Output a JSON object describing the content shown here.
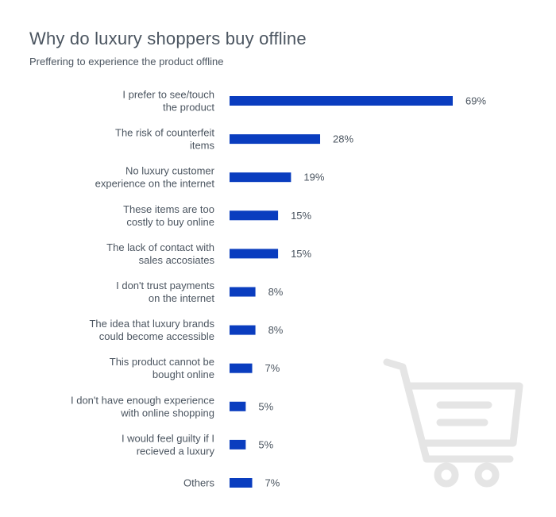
{
  "header": {
    "title": "Why do luxury shoppers buy offline",
    "subtitle": "Preffering to experience the product offline"
  },
  "colors": {
    "bar": "#0a3dbf",
    "text": "#4b5560",
    "icon": "#e5e5e5"
  },
  "icons": [
    "shopping-cart-icon"
  ],
  "chart_data": {
    "type": "bar",
    "orientation": "horizontal",
    "categories": [
      [
        "I prefer to see/touch",
        "the product"
      ],
      [
        "The risk of counterfeit",
        "items"
      ],
      [
        "No luxury customer",
        "experience on the internet"
      ],
      [
        "These items are too",
        "costly to buy online"
      ],
      [
        "The lack of contact with",
        "sales accosiates"
      ],
      [
        "I don't trust payments",
        "on the internet"
      ],
      [
        "The idea that luxury brands",
        "could become accessible"
      ],
      [
        "This product cannot be",
        "bought online"
      ],
      [
        "I don't have enough experience",
        "with online shopping"
      ],
      [
        "I would feel guilty if I",
        "recieved a luxury"
      ],
      [
        "Others"
      ]
    ],
    "values": [
      69,
      28,
      19,
      15,
      15,
      8,
      8,
      7,
      5,
      5,
      7
    ],
    "value_labels": [
      "69%",
      "28%",
      "19%",
      "15%",
      "15%",
      "8%",
      "8%",
      "7%",
      "5%",
      "5%",
      "7%"
    ],
    "unit": "%",
    "xlim": [
      0,
      69
    ],
    "grid": false,
    "legend": false
  }
}
